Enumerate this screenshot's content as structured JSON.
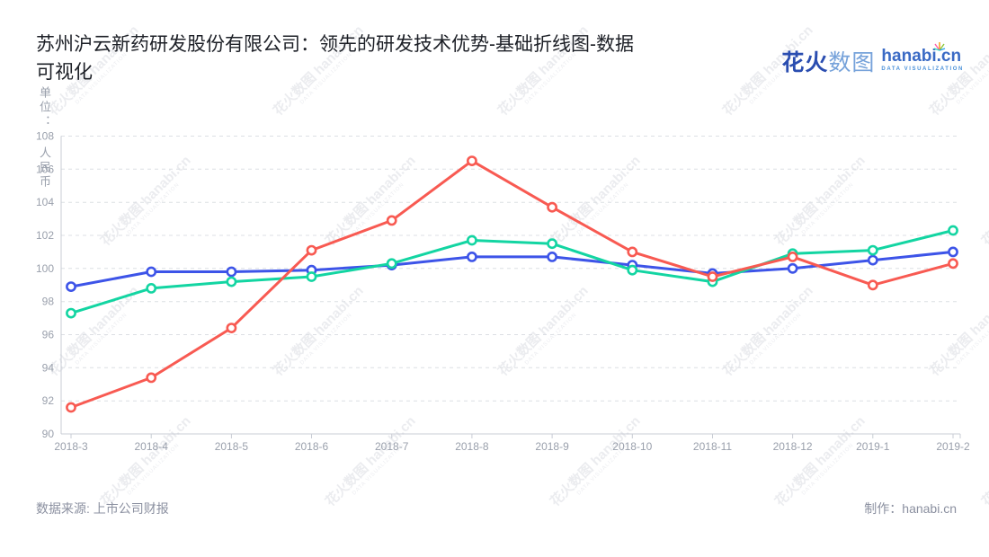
{
  "title": {
    "lines": [
      "苏州沪云新药研发股份有限公司：领先的研发技术优势-基础折线图-数据",
      "可视化"
    ]
  },
  "logo": {
    "brand_part1": "花火",
    "brand_part2": "数图",
    "brand_en": "hanabi.cn",
    "tagline": "DATA VISUALIZATION"
  },
  "watermark": {
    "line1": "花火数图 hanabi.cn",
    "line2": "DATA VISUALIZATION"
  },
  "y_axis": {
    "name_top": "单位：",
    "name_bottom": "人民币",
    "ticks": [
      90,
      92,
      94,
      96,
      98,
      100,
      102,
      104,
      106,
      108
    ]
  },
  "footer": {
    "source": "数据来源: 上市公司财报",
    "credit": "制作：hanabi.cn"
  },
  "colors": {
    "grid": "#dcdfe4",
    "axis": "#c8ccd4",
    "tick_text": "#9aa0ac"
  },
  "chart_data": {
    "type": "line",
    "title": "苏州沪云新药研发股份有限公司：领先的研发技术优势-基础折线图-数据可视化",
    "xlabel": "",
    "ylabel": "单位：人民币",
    "ylim": [
      90,
      108
    ],
    "y_tick_step": 2,
    "grid": "horizontal-dashed",
    "legend": "none",
    "categories": [
      "2018-3",
      "2018-4",
      "2018-5",
      "2018-6",
      "2018-7",
      "2018-8",
      "2018-9",
      "2018-10",
      "2018-11",
      "2018-12",
      "2019-1",
      "2019-2"
    ],
    "series": [
      {
        "name": "blue-line",
        "color": "#3d54e8",
        "values": [
          98.9,
          99.8,
          99.8,
          99.9,
          100.2,
          100.7,
          100.7,
          100.2,
          99.7,
          100.0,
          100.5,
          101.0
        ]
      },
      {
        "name": "green-line",
        "color": "#13d5a2",
        "values": [
          97.3,
          98.8,
          99.2,
          99.5,
          100.3,
          101.7,
          101.5,
          99.9,
          99.2,
          100.9,
          101.1,
          102.3
        ]
      },
      {
        "name": "red-line",
        "color": "#f85a52",
        "values": [
          91.6,
          93.4,
          96.4,
          101.1,
          102.9,
          106.5,
          103.7,
          101.0,
          99.5,
          100.7,
          99.0,
          100.3
        ]
      }
    ]
  }
}
